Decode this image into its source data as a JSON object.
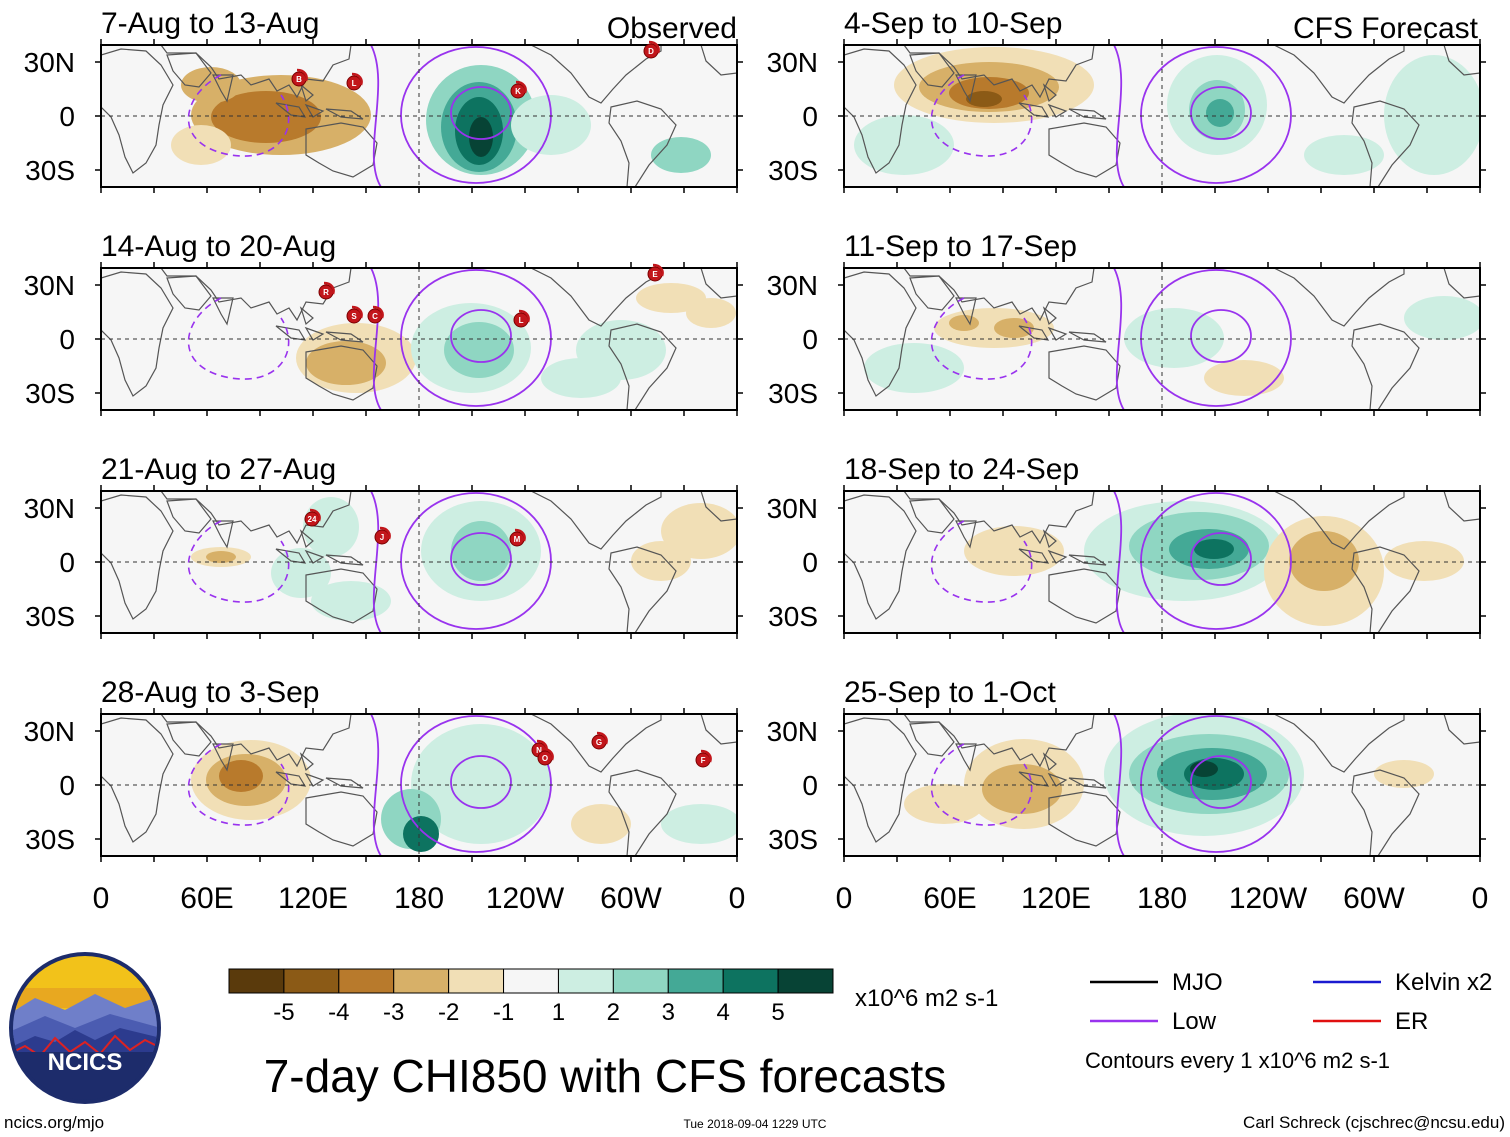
{
  "title": "7-day CHI850 with CFS forecasts",
  "columns": {
    "left_header": "Observed",
    "right_header": "CFS Forecast"
  },
  "panels": {
    "left": [
      {
        "date_range": "7-Aug to 13-Aug",
        "storm_labels": [
          "B",
          "L",
          "K",
          "D"
        ]
      },
      {
        "date_range": "14-Aug to 20-Aug",
        "storm_labels": [
          "R",
          "S",
          "C",
          "L",
          "E"
        ]
      },
      {
        "date_range": "21-Aug to 27-Aug",
        "storm_labels": [
          "24",
          "J",
          "M"
        ]
      },
      {
        "date_range": "28-Aug to 3-Sep",
        "storm_labels": [
          "N",
          "O",
          "G",
          "F"
        ]
      }
    ],
    "right": [
      {
        "date_range": "4-Sep to 10-Sep"
      },
      {
        "date_range": "11-Sep to 17-Sep"
      },
      {
        "date_range": "18-Sep to 24-Sep"
      },
      {
        "date_range": "25-Sep to 1-Oct"
      }
    ]
  },
  "lat_ticks": [
    "30N",
    "0",
    "30S"
  ],
  "lon_ticks": [
    "0",
    "60E",
    "120E",
    "180",
    "120W",
    "60W",
    "0"
  ],
  "colorbar": {
    "colors": [
      "#5a3a0c",
      "#8b5a16",
      "#b87a2c",
      "#d7b068",
      "#f1dfb6",
      "#f6f6f6",
      "#cdeee2",
      "#8fd6c2",
      "#44a996",
      "#0d7360",
      "#074335"
    ],
    "tick_labels": [
      "-5",
      "-4",
      "-3",
      "-2",
      "-1",
      "1",
      "2",
      "3",
      "4",
      "5"
    ],
    "units": "x10^6 m2 s-1"
  },
  "legend": {
    "items": [
      {
        "label": "MJO",
        "color": "#000000"
      },
      {
        "label": "Low",
        "color": "#9933ee"
      },
      {
        "label": "Kelvin x2",
        "color": "#1a1ad0"
      },
      {
        "label": "ER",
        "color": "#e01010"
      }
    ],
    "note": "Contours every 1 x10^6 m2 s-1"
  },
  "logo_text": "NCICS",
  "footer": {
    "left": "ncics.org/mjo",
    "center": "Tue 2018-09-04 1229 UTC",
    "right": "Carl Schreck (cjschrec@ncsu.edu)"
  }
}
